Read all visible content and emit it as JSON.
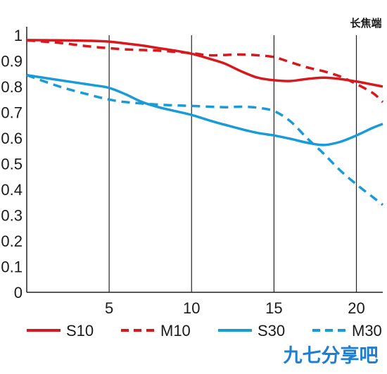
{
  "chart_data": {
    "type": "line",
    "corner_label": "长焦端",
    "xlim": [
      0,
      21.6
    ],
    "ylim": [
      0,
      1
    ],
    "x_ticks": [
      5,
      10,
      15,
      20
    ],
    "y_ticks": [
      0,
      0.1,
      0.2,
      0.3,
      0.4,
      0.5,
      0.6,
      0.7,
      0.8,
      0.9,
      1
    ],
    "y_tick_labels": [
      "0",
      "0.1",
      "0.2",
      "0.3",
      "0.4",
      "0.5",
      "0.6",
      "0.7",
      "0.8",
      "0.9",
      "1"
    ],
    "grid": "vertical",
    "legend_position": "bottom",
    "series": [
      {
        "name": "S10",
        "color": "#d7191e",
        "dash": "solid",
        "points": [
          [
            0,
            0.981
          ],
          [
            2,
            0.98
          ],
          [
            4,
            0.978
          ],
          [
            5,
            0.975
          ],
          [
            6,
            0.968
          ],
          [
            7,
            0.96
          ],
          [
            8,
            0.95
          ],
          [
            9,
            0.94
          ],
          [
            10,
            0.928
          ],
          [
            11,
            0.91
          ],
          [
            12,
            0.89
          ],
          [
            13,
            0.86
          ],
          [
            14,
            0.835
          ],
          [
            15,
            0.825
          ],
          [
            16,
            0.822
          ],
          [
            17,
            0.83
          ],
          [
            18,
            0.835
          ],
          [
            19,
            0.83
          ],
          [
            20,
            0.82
          ],
          [
            21,
            0.808
          ],
          [
            21.6,
            0.8
          ]
        ]
      },
      {
        "name": "M10",
        "color": "#d7191e",
        "dash": "dashed",
        "points": [
          [
            0,
            0.98
          ],
          [
            2,
            0.97
          ],
          [
            4,
            0.955
          ],
          [
            6,
            0.945
          ],
          [
            8,
            0.94
          ],
          [
            10,
            0.93
          ],
          [
            11,
            0.922
          ],
          [
            12,
            0.923
          ],
          [
            13,
            0.925
          ],
          [
            14,
            0.922
          ],
          [
            15,
            0.915
          ],
          [
            16,
            0.895
          ],
          [
            17,
            0.875
          ],
          [
            18,
            0.86
          ],
          [
            19,
            0.84
          ],
          [
            20,
            0.81
          ],
          [
            21,
            0.775
          ],
          [
            21.6,
            0.74
          ]
        ]
      },
      {
        "name": "S30",
        "color": "#1a9bd7",
        "dash": "solid",
        "points": [
          [
            0,
            0.845
          ],
          [
            2,
            0.825
          ],
          [
            4,
            0.806
          ],
          [
            5,
            0.795
          ],
          [
            6,
            0.77
          ],
          [
            7,
            0.74
          ],
          [
            8,
            0.72
          ],
          [
            9,
            0.705
          ],
          [
            10,
            0.69
          ],
          [
            11,
            0.67
          ],
          [
            12,
            0.652
          ],
          [
            13,
            0.635
          ],
          [
            14,
            0.62
          ],
          [
            15,
            0.61
          ],
          [
            16,
            0.597
          ],
          [
            17,
            0.582
          ],
          [
            18,
            0.573
          ],
          [
            19,
            0.585
          ],
          [
            20,
            0.61
          ],
          [
            21,
            0.64
          ],
          [
            21.6,
            0.655
          ]
        ]
      },
      {
        "name": "M30",
        "color": "#1a9bd7",
        "dash": "dashed",
        "points": [
          [
            0,
            0.845
          ],
          [
            2,
            0.8
          ],
          [
            4,
            0.765
          ],
          [
            5,
            0.75
          ],
          [
            6,
            0.74
          ],
          [
            8,
            0.73
          ],
          [
            10,
            0.725
          ],
          [
            12,
            0.72
          ],
          [
            13,
            0.722
          ],
          [
            14,
            0.718
          ],
          [
            15,
            0.705
          ],
          [
            16,
            0.665
          ],
          [
            17,
            0.6
          ],
          [
            18,
            0.54
          ],
          [
            19,
            0.475
          ],
          [
            20,
            0.42
          ],
          [
            21,
            0.37
          ],
          [
            21.6,
            0.34
          ]
        ]
      }
    ]
  },
  "watermark": "九七分享吧"
}
